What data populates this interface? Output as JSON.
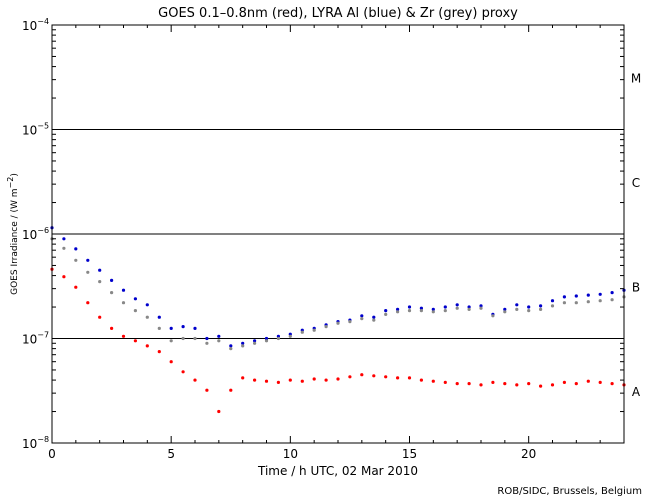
{
  "chart_data": {
    "type": "scatter",
    "title": "GOES 0.1–0.8nm (red), LYRA Al (blue) & Zr (grey) proxy",
    "xlabel": "Time / h UTC, 02 Mar 2010",
    "ylabel_text": "GOES Irradiance / (W m",
    "ylabel_exponent": "−2",
    "ylabel_close": ")",
    "credit": "ROB/SIDC, Brussels, Belgium",
    "xlim": [
      0,
      24
    ],
    "ylim_log10": [
      -8,
      -4
    ],
    "x_ticks": [
      0,
      5,
      10,
      15,
      20
    ],
    "x_tick_labels": [
      "0",
      "5",
      "10",
      "15",
      "20"
    ],
    "y_tick_labels": [
      {
        "base": "10",
        "exp": "−8"
      },
      {
        "base": "10",
        "exp": "−7"
      },
      {
        "base": "10",
        "exp": "−6"
      },
      {
        "base": "10",
        "exp": "−5"
      },
      {
        "base": "10",
        "exp": "−4"
      }
    ],
    "flare_class_lines": [
      1e-07,
      1e-06,
      1e-05
    ],
    "flare_classes": [
      "A",
      "B",
      "C",
      "M"
    ],
    "colors": {
      "red": "#ff0000",
      "blue": "#0000cc",
      "grey": "#888888",
      "axis": "#000000"
    },
    "series": [
      {
        "name": "LYRA Al proxy (blue)",
        "color": "#0000cc",
        "x": [
          0,
          0.5,
          1,
          1.5,
          2,
          2.5,
          3,
          3.5,
          4,
          4.5,
          5,
          5.5,
          6,
          6.5,
          7,
          7.5,
          8,
          8.5,
          9,
          9.5,
          10,
          10.5,
          11,
          11.5,
          12,
          12.5,
          13,
          13.5,
          14,
          14.5,
          15,
          15.5,
          16,
          16.5,
          17,
          17.5,
          18,
          18.5,
          19,
          19.5,
          20,
          20.5,
          21,
          21.5,
          22,
          22.5,
          23,
          23.5,
          24
        ],
        "y": [
          1.15e-06,
          9e-07,
          7.2e-07,
          5.6e-07,
          4.5e-07,
          3.6e-07,
          2.9e-07,
          2.4e-07,
          2.1e-07,
          1.6e-07,
          1.25e-07,
          1.3e-07,
          1.25e-07,
          1e-07,
          1.05e-07,
          8.5e-08,
          9e-08,
          9.5e-08,
          1e-07,
          1.05e-07,
          1.1e-07,
          1.2e-07,
          1.25e-07,
          1.35e-07,
          1.45e-07,
          1.5e-07,
          1.65e-07,
          1.6e-07,
          1.85e-07,
          1.9e-07,
          2e-07,
          1.95e-07,
          1.9e-07,
          2e-07,
          2.1e-07,
          2e-07,
          2.05e-07,
          1.7e-07,
          1.9e-07,
          2.1e-07,
          2e-07,
          2.05e-07,
          2.3e-07,
          2.5e-07,
          2.55e-07,
          2.6e-07,
          2.65e-07,
          2.75e-07,
          2.9e-07
        ]
      },
      {
        "name": "LYRA Zr proxy (grey)",
        "color": "#888888",
        "x": [
          0,
          0.5,
          1,
          1.5,
          2,
          2.5,
          3,
          3.5,
          4,
          4.5,
          5,
          5.5,
          6,
          6.5,
          7,
          7.5,
          8,
          8.5,
          9,
          9.5,
          10,
          10.5,
          11,
          11.5,
          12,
          12.5,
          13,
          13.5,
          14,
          14.5,
          15,
          15.5,
          16,
          16.5,
          17,
          17.5,
          18,
          18.5,
          19,
          19.5,
          20,
          20.5,
          21,
          21.5,
          22,
          22.5,
          23,
          23.5,
          24
        ],
        "y": [
          9e-07,
          7.3e-07,
          5.6e-07,
          4.3e-07,
          3.5e-07,
          2.75e-07,
          2.2e-07,
          1.85e-07,
          1.6e-07,
          1.25e-07,
          9.5e-08,
          1e-07,
          1e-07,
          9e-08,
          9.5e-08,
          8e-08,
          8.5e-08,
          9e-08,
          9.5e-08,
          1e-07,
          1.05e-07,
          1.15e-07,
          1.2e-07,
          1.3e-07,
          1.4e-07,
          1.45e-07,
          1.55e-07,
          1.5e-07,
          1.7e-07,
          1.8e-07,
          1.85e-07,
          1.85e-07,
          1.8e-07,
          1.85e-07,
          1.95e-07,
          1.9e-07,
          1.95e-07,
          1.65e-07,
          1.8e-07,
          1.9e-07,
          1.85e-07,
          1.9e-07,
          2.05e-07,
          2.2e-07,
          2.2e-07,
          2.25e-07,
          2.3e-07,
          2.35e-07,
          2.5e-07
        ]
      },
      {
        "name": "GOES 0.1–0.8nm (red)",
        "color": "#ff0000",
        "x": [
          0,
          0.5,
          1,
          1.5,
          2,
          2.5,
          3,
          3.5,
          4,
          4.5,
          5,
          5.5,
          6,
          6.5,
          7,
          7.5,
          8,
          8.5,
          9,
          9.5,
          10,
          10.5,
          11,
          11.5,
          12,
          12.5,
          13,
          13.5,
          14,
          14.5,
          15,
          15.5,
          16,
          16.5,
          17,
          17.5,
          18,
          18.5,
          19,
          19.5,
          20,
          20.5,
          21,
          21.5,
          22,
          22.5,
          23,
          23.5,
          24
        ],
        "y": [
          4.6e-07,
          3.9e-07,
          3.1e-07,
          2.2e-07,
          1.6e-07,
          1.25e-07,
          1.05e-07,
          9.5e-08,
          8.5e-08,
          7.5e-08,
          6e-08,
          4.8e-08,
          4e-08,
          3.2e-08,
          2e-08,
          3.2e-08,
          4.2e-08,
          4e-08,
          3.9e-08,
          3.8e-08,
          4e-08,
          3.9e-08,
          4.1e-08,
          4e-08,
          4.1e-08,
          4.3e-08,
          4.5e-08,
          4.4e-08,
          4.3e-08,
          4.2e-08,
          4.2e-08,
          4e-08,
          3.9e-08,
          3.8e-08,
          3.7e-08,
          3.7e-08,
          3.6e-08,
          3.8e-08,
          3.7e-08,
          3.6e-08,
          3.7e-08,
          3.5e-08,
          3.6e-08,
          3.8e-08,
          3.7e-08,
          3.9e-08,
          3.8e-08,
          3.7e-08,
          3.6e-08
        ]
      }
    ]
  }
}
